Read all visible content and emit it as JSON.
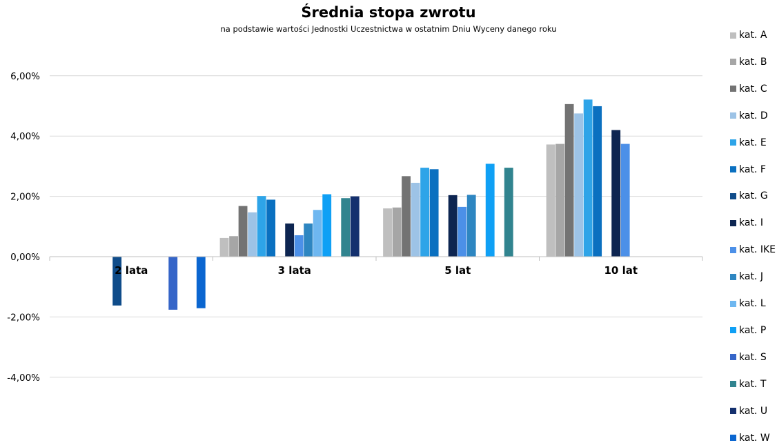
{
  "chart_data": {
    "type": "bar",
    "title": "Średnia stopa zwrotu",
    "subtitle": "na podstawie wartości Jednostki Uczestnictwa w ostatnim Dniu Wyceny danego roku",
    "categories": [
      "2 lata",
      "3 lata",
      "5 lat",
      "10 lat"
    ],
    "y_ticks": [
      "6,00%",
      "4,00%",
      "2,00%",
      "0,00%",
      "-2,00%",
      "-4,00%"
    ],
    "ylim": [
      -4.0,
      6.0
    ],
    "y_unit": "%",
    "grid": true,
    "legend_position": "right",
    "series": [
      {
        "name": "kat. A",
        "color": "#BFBFBF",
        "values": [
          null,
          0.62,
          1.6,
          3.72
        ]
      },
      {
        "name": "kat. B",
        "color": "#A6A6A6",
        "values": [
          null,
          0.68,
          1.63,
          3.74
        ]
      },
      {
        "name": "kat. C",
        "color": "#737373",
        "values": [
          null,
          1.68,
          2.67,
          5.06
        ]
      },
      {
        "name": "kat. D",
        "color": "#9DC3E6",
        "values": [
          null,
          1.47,
          2.45,
          4.75
        ]
      },
      {
        "name": "kat. E",
        "color": "#2EA4E8",
        "values": [
          null,
          2.01,
          2.95,
          5.21
        ]
      },
      {
        "name": "kat. F",
        "color": "#0A70C0",
        "values": [
          null,
          1.89,
          2.9,
          4.99
        ]
      },
      {
        "name": "kat. G",
        "color": "#0F4C8A",
        "values": [
          -1.62,
          null,
          null,
          null
        ]
      },
      {
        "name": "kat. I",
        "color": "#0D2551",
        "values": [
          null,
          1.1,
          2.04,
          4.2
        ]
      },
      {
        "name": "kat. IKE",
        "color": "#4C90E8",
        "values": [
          null,
          0.71,
          1.65,
          3.74
        ]
      },
      {
        "name": "kat. J",
        "color": "#2E86C1",
        "values": [
          null,
          1.1,
          2.05,
          null
        ]
      },
      {
        "name": "kat. L",
        "color": "#6EB7F0",
        "values": [
          null,
          1.55,
          null,
          null
        ]
      },
      {
        "name": "kat. P",
        "color": "#0FA0F5",
        "values": [
          null,
          2.07,
          3.08,
          null
        ]
      },
      {
        "name": "kat. S",
        "color": "#3565C8",
        "values": [
          -1.76,
          null,
          null,
          null
        ]
      },
      {
        "name": "kat. T",
        "color": "#31848F",
        "values": [
          null,
          1.94,
          2.95,
          null
        ]
      },
      {
        "name": "kat. U",
        "color": "#14306E",
        "values": [
          null,
          2.0,
          null,
          null
        ]
      },
      {
        "name": "kat. W",
        "color": "#0B66D0",
        "values": [
          -1.71,
          null,
          null,
          null
        ]
      }
    ]
  }
}
